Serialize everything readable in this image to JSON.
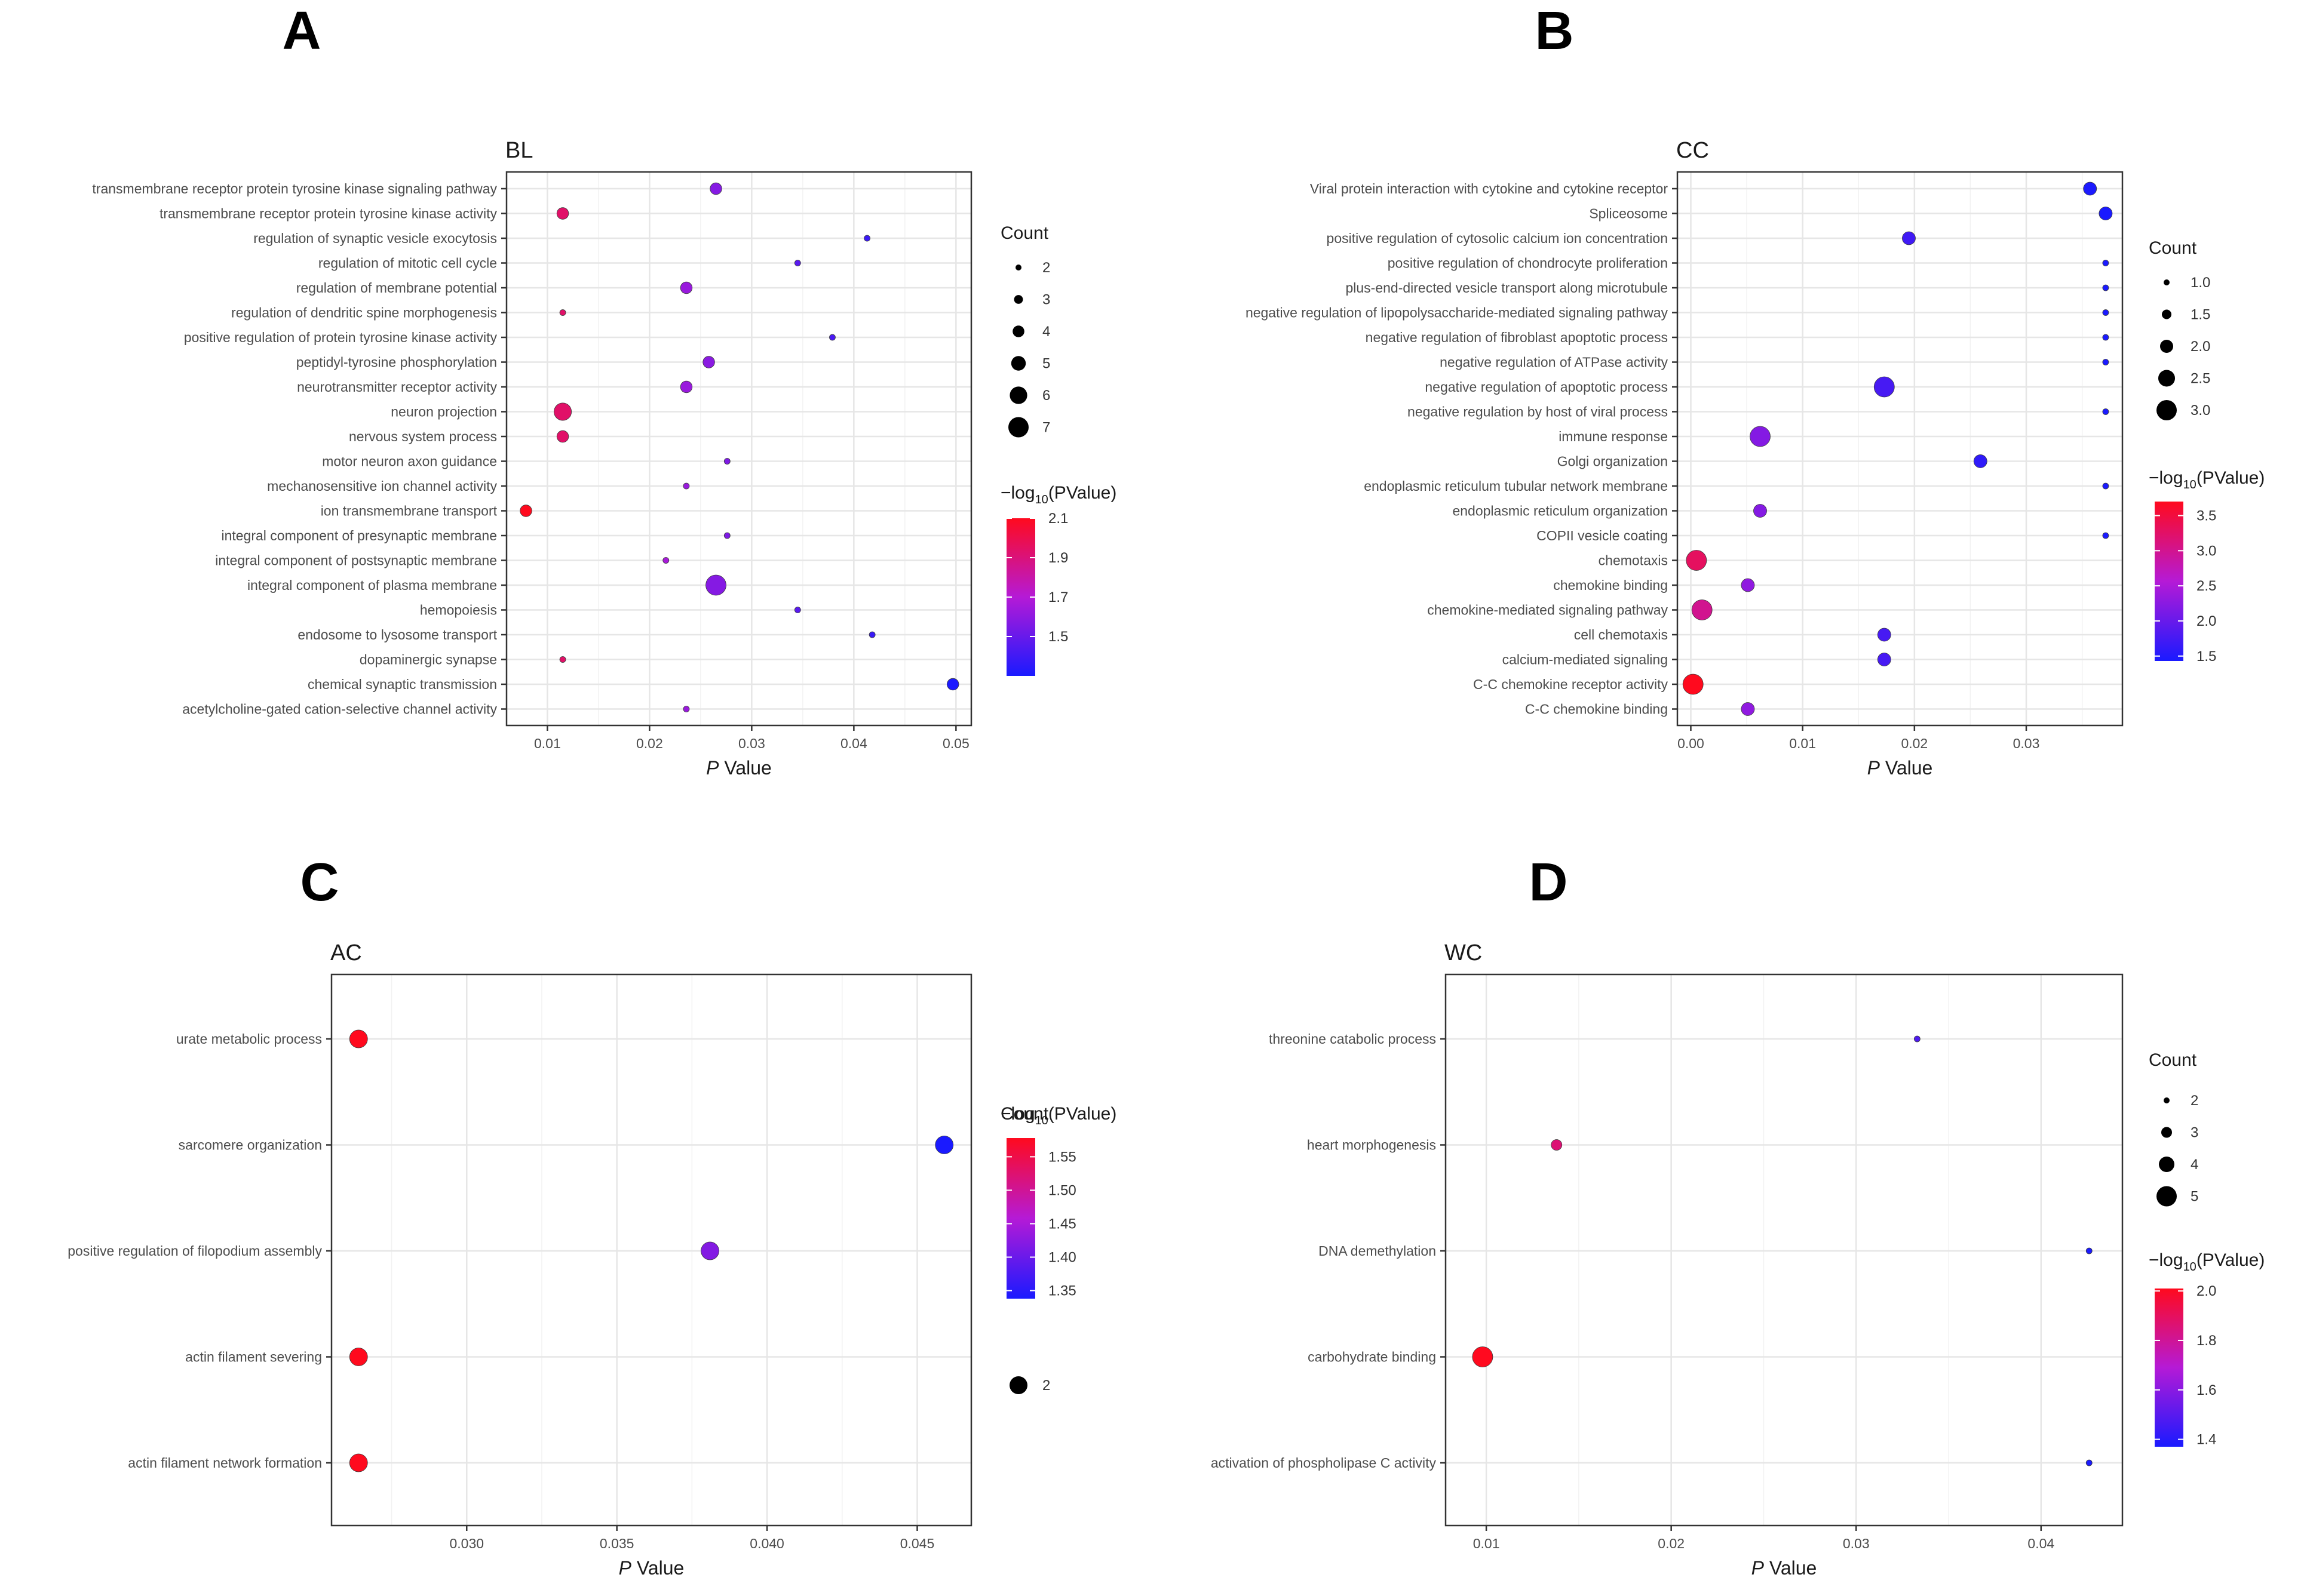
{
  "panel_letters": {
    "A": "A",
    "B": "B",
    "C": "C",
    "D": "D"
  },
  "common": {
    "x_label_italic": "P",
    "x_label_rest": " Value",
    "count_title": "Count",
    "color_title_prefix": "−log",
    "color_title_sub": "10",
    "color_title_suffix": "(PValue)"
  },
  "colors": {
    "low": "#1a1aff",
    "mid": "#b51ad6",
    "high": "#ff0a1e"
  },
  "chart_data": [
    {
      "id": "A",
      "type": "scatter",
      "title": "BL",
      "xlabel": "P Value",
      "xlim": [
        0.006,
        0.0515
      ],
      "xticks": [
        0.01,
        0.02,
        0.03,
        0.04,
        0.05
      ],
      "xtick_labels": [
        "0.01",
        "0.02",
        "0.03",
        "0.04",
        "0.05"
      ],
      "categories": [
        "transmembrane receptor protein tyrosine kinase signaling pathway",
        "transmembrane receptor protein tyrosine kinase activity",
        "regulation of synaptic vesicle exocytosis",
        "regulation of mitotic cell cycle",
        "regulation of membrane potential",
        "regulation of dendritic spine morphogenesis",
        "positive regulation of protein tyrosine kinase activity",
        "peptidyl-tyrosine phosphorylation",
        "neurotransmitter receptor activity",
        "neuron projection",
        "nervous system process",
        "motor neuron axon guidance",
        "mechanosensitive ion channel activity",
        "ion transmembrane transport",
        "integral component of presynaptic membrane",
        "integral component of postsynaptic membrane",
        "integral component of plasma membrane",
        "hemopoiesis",
        "endosome to lysosome transport",
        "dopaminergic synapse",
        "chemical synaptic transmission",
        "acetylcholine-gated cation-selective channel activity"
      ],
      "pvalues": [
        0.0265,
        0.0115,
        0.0413,
        0.0345,
        0.0236,
        0.0115,
        0.0379,
        0.0258,
        0.0236,
        0.0115,
        0.0115,
        0.0276,
        0.0236,
        0.0079,
        0.0276,
        0.0216,
        0.0265,
        0.0345,
        0.0418,
        0.0115,
        0.0497,
        0.0236
      ],
      "counts": [
        4,
        4,
        2,
        2,
        4,
        2,
        2,
        4,
        4,
        6,
        4,
        2,
        2,
        4,
        2,
        2,
        7,
        2,
        2,
        2,
        4,
        2
      ],
      "size_legend": {
        "values": [
          2,
          3,
          4,
          5,
          6,
          7
        ],
        "labels": [
          "2",
          "3",
          "4",
          "5",
          "6",
          "7"
        ],
        "domain": [
          2,
          7
        ]
      },
      "color_legend": {
        "domain": [
          1.3,
          2.1
        ],
        "ticks": [
          1.5,
          1.7,
          1.9,
          2.1
        ],
        "labels": [
          "1.5",
          "1.7",
          "1.9",
          "2.1"
        ]
      }
    },
    {
      "id": "B",
      "type": "scatter",
      "title": "CC",
      "xlabel": "P Value",
      "xlim": [
        -0.0012,
        0.0386
      ],
      "xticks": [
        0.0,
        0.01,
        0.02,
        0.03
      ],
      "xtick_labels": [
        "0.00",
        "0.01",
        "0.02",
        "0.03"
      ],
      "categories": [
        "Viral protein interaction with cytokine and cytokine receptor",
        "Spliceosome",
        "positive regulation of cytosolic calcium ion concentration",
        "positive regulation of chondrocyte proliferation",
        "plus-end-directed vesicle transport along microtubule",
        "negative regulation of lipopolysaccharide-mediated signaling pathway",
        "negative regulation of fibroblast apoptotic process",
        "negative regulation of ATPase activity",
        "negative regulation of apoptotic process",
        "negative regulation by host of viral process",
        "immune response",
        "Golgi organization",
        "endoplasmic reticulum tubular network membrane",
        "endoplasmic reticulum organization",
        "COPII vesicle coating",
        "chemotaxis",
        "chemokine binding",
        "chemokine-mediated signaling pathway",
        "cell chemotaxis",
        "calcium-mediated signaling",
        "C-C chemokine receptor activity",
        "C-C chemokine binding"
      ],
      "pvalues": [
        0.0357,
        0.0371,
        0.0195,
        0.0371,
        0.0371,
        0.0371,
        0.0371,
        0.0371,
        0.0173,
        0.0371,
        0.0062,
        0.0259,
        0.0371,
        0.0062,
        0.0371,
        0.0005,
        0.0051,
        0.001,
        0.0173,
        0.0173,
        0.0002,
        0.0051
      ],
      "counts": [
        2,
        2,
        2,
        1,
        1,
        1,
        1,
        1,
        3,
        1,
        3,
        2,
        1,
        2,
        1,
        3,
        2,
        3,
        2,
        2,
        3,
        2
      ],
      "size_legend": {
        "values": [
          1.0,
          1.5,
          2.0,
          2.5,
          3.0
        ],
        "labels": [
          "1.0",
          "1.5",
          "2.0",
          "2.5",
          "3.0"
        ],
        "domain": [
          1,
          3
        ]
      },
      "color_legend": {
        "domain": [
          1.43,
          3.7
        ],
        "ticks": [
          1.5,
          2.0,
          2.5,
          3.0,
          3.5
        ],
        "labels": [
          "1.5",
          "2.0",
          "2.5",
          "3.0",
          "3.5"
        ]
      }
    },
    {
      "id": "C",
      "type": "scatter",
      "title": "AC",
      "xlabel": "P Value",
      "xlim": [
        0.0255,
        0.0468
      ],
      "xticks": [
        0.03,
        0.035,
        0.04,
        0.045
      ],
      "xtick_labels": [
        "0.030",
        "0.035",
        "0.040",
        "0.045"
      ],
      "categories": [
        "urate metabolic process",
        "sarcomere organization",
        "positive regulation of filopodium assembly",
        "actin filament severing",
        "actin filament network formation"
      ],
      "pvalues": [
        0.0264,
        0.0459,
        0.0381,
        0.0264,
        0.0264
      ],
      "counts": [
        2,
        2,
        2,
        2,
        2
      ],
      "size_legend": {
        "values": [
          2
        ],
        "labels": [
          "2"
        ],
        "domain": [
          2,
          2
        ]
      },
      "color_legend": {
        "domain": [
          1.338,
          1.578
        ],
        "ticks": [
          1.35,
          1.4,
          1.45,
          1.5,
          1.55
        ],
        "labels": [
          "1.35",
          "1.40",
          "1.45",
          "1.50",
          "1.55"
        ]
      }
    },
    {
      "id": "D",
      "type": "scatter",
      "title": "WC",
      "xlabel": "P Value",
      "xlim": [
        0.0078,
        0.0444
      ],
      "xticks": [
        0.01,
        0.02,
        0.03,
        0.04
      ],
      "xtick_labels": [
        "0.01",
        "0.02",
        "0.03",
        "0.04"
      ],
      "categories": [
        "threonine catabolic process",
        "heart morphogenesis",
        "DNA demethylation",
        "carbohydrate binding",
        "activation of phospholipase C activity"
      ],
      "pvalues": [
        0.0333,
        0.0138,
        0.0426,
        0.0098,
        0.0426
      ],
      "counts": [
        2,
        3,
        2,
        5,
        2
      ],
      "size_legend": {
        "values": [
          2,
          3,
          4,
          5
        ],
        "labels": [
          "2",
          "3",
          "4",
          "5"
        ],
        "domain": [
          2,
          5
        ]
      },
      "color_legend": {
        "domain": [
          1.37,
          2.01
        ],
        "ticks": [
          1.4,
          1.6,
          1.8,
          2.0
        ],
        "labels": [
          "1.4",
          "1.6",
          "1.8",
          "2.0"
        ]
      }
    }
  ]
}
